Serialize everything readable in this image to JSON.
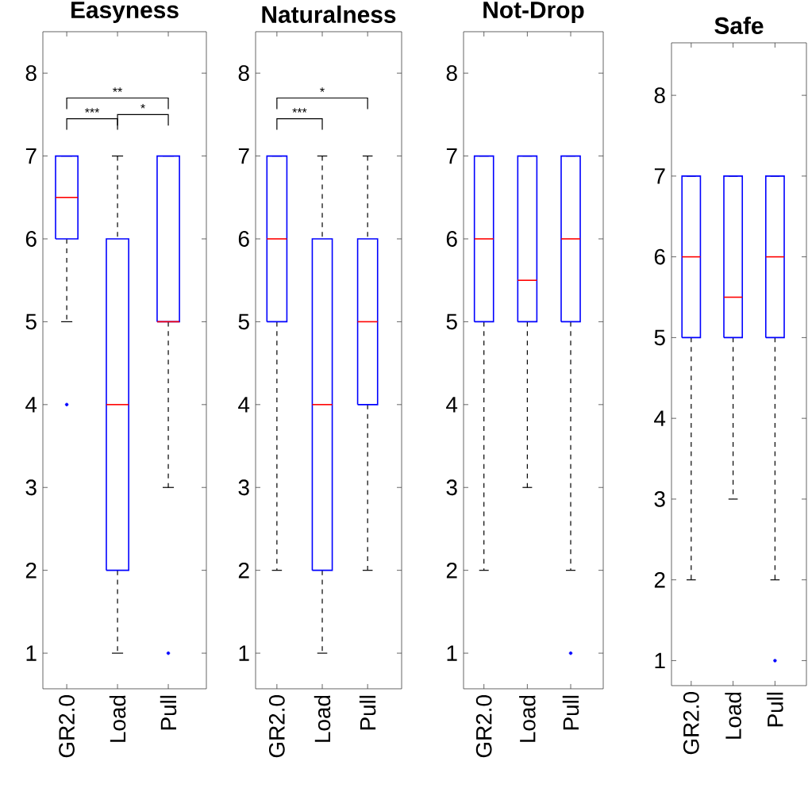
{
  "chart_data": [
    {
      "type": "box",
      "title": "Easyness",
      "categories": [
        "GR2.0",
        "Load",
        "Pull"
      ],
      "ylim": [
        0.57,
        8.5
      ],
      "yticks": [
        1,
        2,
        3,
        4,
        5,
        6,
        7,
        8
      ],
      "series": [
        {
          "color": "#0000ff",
          "boxes": [
            {
              "low": 5,
              "q1": 6,
              "median": 6.5,
              "q3": 7,
              "high": 7,
              "outliers": [
                4
              ]
            },
            {
              "low": 1,
              "q1": 2,
              "median": 4,
              "q3": 6,
              "high": 7
            },
            {
              "low": 3,
              "q1": 5,
              "median": 5,
              "q3": 7,
              "high": 7,
              "outliers": [
                1
              ]
            }
          ]
        }
      ],
      "annotations": [
        "***",
        "*",
        "**"
      ]
    },
    {
      "type": "box",
      "title": "Naturalness",
      "categories": [
        "GR2.0",
        "Load",
        "Pull"
      ],
      "ylim": [
        0.57,
        8.5
      ],
      "yticks": [
        1,
        2,
        3,
        4,
        5,
        6,
        7,
        8
      ],
      "series": [
        {
          "color": "#0000ff",
          "boxes": [
            {
              "low": 2,
              "q1": 5,
              "median": 6,
              "q3": 7,
              "high": 7
            },
            {
              "low": 1,
              "q1": 2,
              "median": 4,
              "q3": 6,
              "high": 7
            },
            {
              "low": 2,
              "q1": 4,
              "median": 5,
              "q3": 6,
              "high": 7
            }
          ]
        }
      ],
      "annotations": [
        "***",
        "*"
      ]
    },
    {
      "type": "box",
      "title": "Not-Drop",
      "categories": [
        "GR2.0",
        "Load",
        "Pull"
      ],
      "ylim": [
        0.57,
        8.5
      ],
      "yticks": [
        1,
        2,
        3,
        4,
        5,
        6,
        7,
        8
      ],
      "series": [
        {
          "color": "#0000ff",
          "boxes": [
            {
              "low": 2,
              "q1": 5,
              "median": 6,
              "q3": 7,
              "high": 7
            },
            {
              "low": 3,
              "q1": 5,
              "median": 5.5,
              "q3": 7,
              "high": 7
            },
            {
              "low": 2,
              "q1": 5,
              "median": 6,
              "q3": 7,
              "high": 7,
              "outliers": [
                1
              ]
            }
          ]
        }
      ]
    },
    {
      "type": "box",
      "title": "Safe",
      "categories": [
        "GR2.0",
        "Load",
        "Pull"
      ],
      "ylim": [
        0.69,
        8.65
      ],
      "yticks": [
        1,
        2,
        3,
        4,
        5,
        6,
        7,
        8
      ],
      "series": [
        {
          "color": "#0000ff",
          "boxes": [
            {
              "low": 2,
              "q1": 5,
              "median": 6,
              "q3": 7,
              "high": 7
            },
            {
              "low": 3,
              "q1": 5,
              "median": 5.5,
              "q3": 7,
              "high": 7
            },
            {
              "low": 2,
              "q1": 5,
              "median": 6,
              "q3": 7,
              "high": 7,
              "outliers": [
                1
              ]
            }
          ]
        }
      ]
    }
  ]
}
